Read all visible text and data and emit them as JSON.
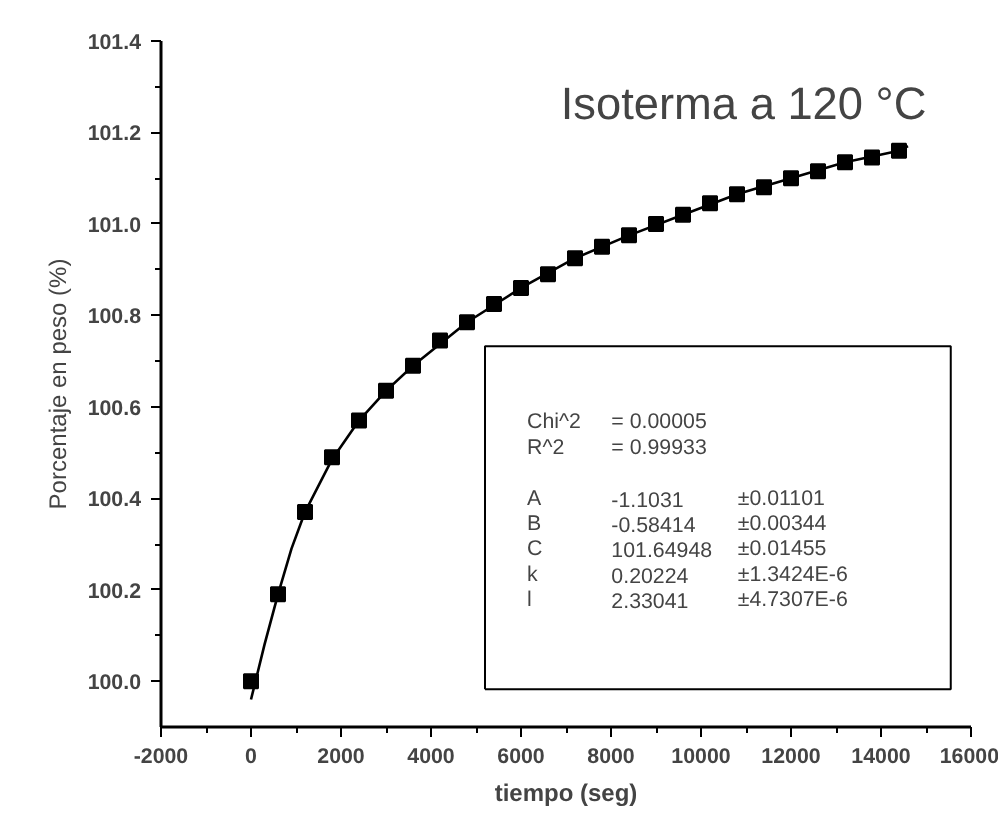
{
  "chart_data": {
    "type": "scatter",
    "title": "Isoterma a 120 °C",
    "xlabel": "tiempo (seg)",
    "ylabel": "Porcentaje en peso (%)",
    "xlim": [
      -2000,
      16000
    ],
    "ylim": [
      99.9,
      101.4
    ],
    "xticks": [
      -2000,
      {
        "value": -1000,
        "label": null
      },
      0,
      {
        "value": 1000,
        "label": null
      },
      2000,
      {
        "value": 3000,
        "label": null
      },
      4000,
      {
        "value": 5000,
        "label": null
      },
      6000,
      {
        "value": 7000,
        "label": null
      },
      8000,
      {
        "value": 9000,
        "label": null
      },
      10000,
      {
        "value": 11000,
        "label": null
      },
      12000,
      {
        "value": 13000,
        "label": null
      },
      14000,
      {
        "value": 15000,
        "label": null
      },
      16000
    ],
    "yticks": [
      {
        "value": 100,
        "label": "100.0"
      },
      {
        "value": 100.1,
        "label": null
      },
      100.2,
      {
        "value": 100.3,
        "label": null
      },
      100.4,
      {
        "value": 100.5,
        "label": null
      },
      100.6,
      {
        "value": 100.7,
        "label": null
      },
      100.8,
      {
        "value": 100.9,
        "label": null
      },
      {
        "value": 101,
        "label": "101.0"
      },
      {
        "value": 101.1,
        "label": null
      },
      101.2,
      {
        "value": 101.3,
        "label": null
      },
      101.4
    ],
    "grid": false,
    "marker": "square",
    "series": [
      {
        "type": "scatter",
        "color": "#000000",
        "x": [
          0,
          600,
          1200,
          1800,
          2400,
          3000,
          3600,
          4200,
          4800,
          5400,
          6000,
          6600,
          7200,
          7800,
          8400,
          9000,
          9600,
          10200,
          10800,
          11400,
          12000,
          12600,
          13200,
          13800,
          14400
        ],
        "values": [
          100.0,
          100.19,
          100.37,
          100.49,
          100.57,
          100.635,
          100.69,
          100.745,
          100.785,
          100.825,
          100.86,
          100.89,
          100.925,
          100.95,
          100.975,
          101.0,
          101.02,
          101.045,
          101.065,
          101.08,
          101.1,
          101.115,
          101.135,
          101.145,
          101.16
        ]
      },
      {
        "type": "line",
        "color": "#000000",
        "marker": "none",
        "line_style": "solid",
        "x": [
          0,
          300,
          600,
          900,
          1200,
          1800,
          2400,
          3000,
          3600,
          4800,
          6000,
          7200,
          8400,
          9600,
          10800,
          12000,
          13200,
          14400,
          14600
        ],
        "values": [
          99.96,
          100.08,
          100.19,
          100.29,
          100.37,
          100.485,
          100.57,
          100.635,
          100.69,
          100.785,
          100.86,
          100.925,
          100.975,
          101.02,
          101.065,
          101.1,
          101.135,
          101.16,
          101.17
        ]
      }
    ],
    "annotations": [
      "Chi^2",
      "= 0.00005",
      "R^2",
      "= 0.99933",
      "A",
      "-1.1031",
      "±0.01101",
      "B",
      "-0.58414",
      "±0.00344",
      "C",
      "101.64948",
      "±0.01455",
      "k",
      "0.20224",
      "±1.3424E-6",
      "l",
      "2.33041",
      "±4.7307E-6"
    ]
  }
}
